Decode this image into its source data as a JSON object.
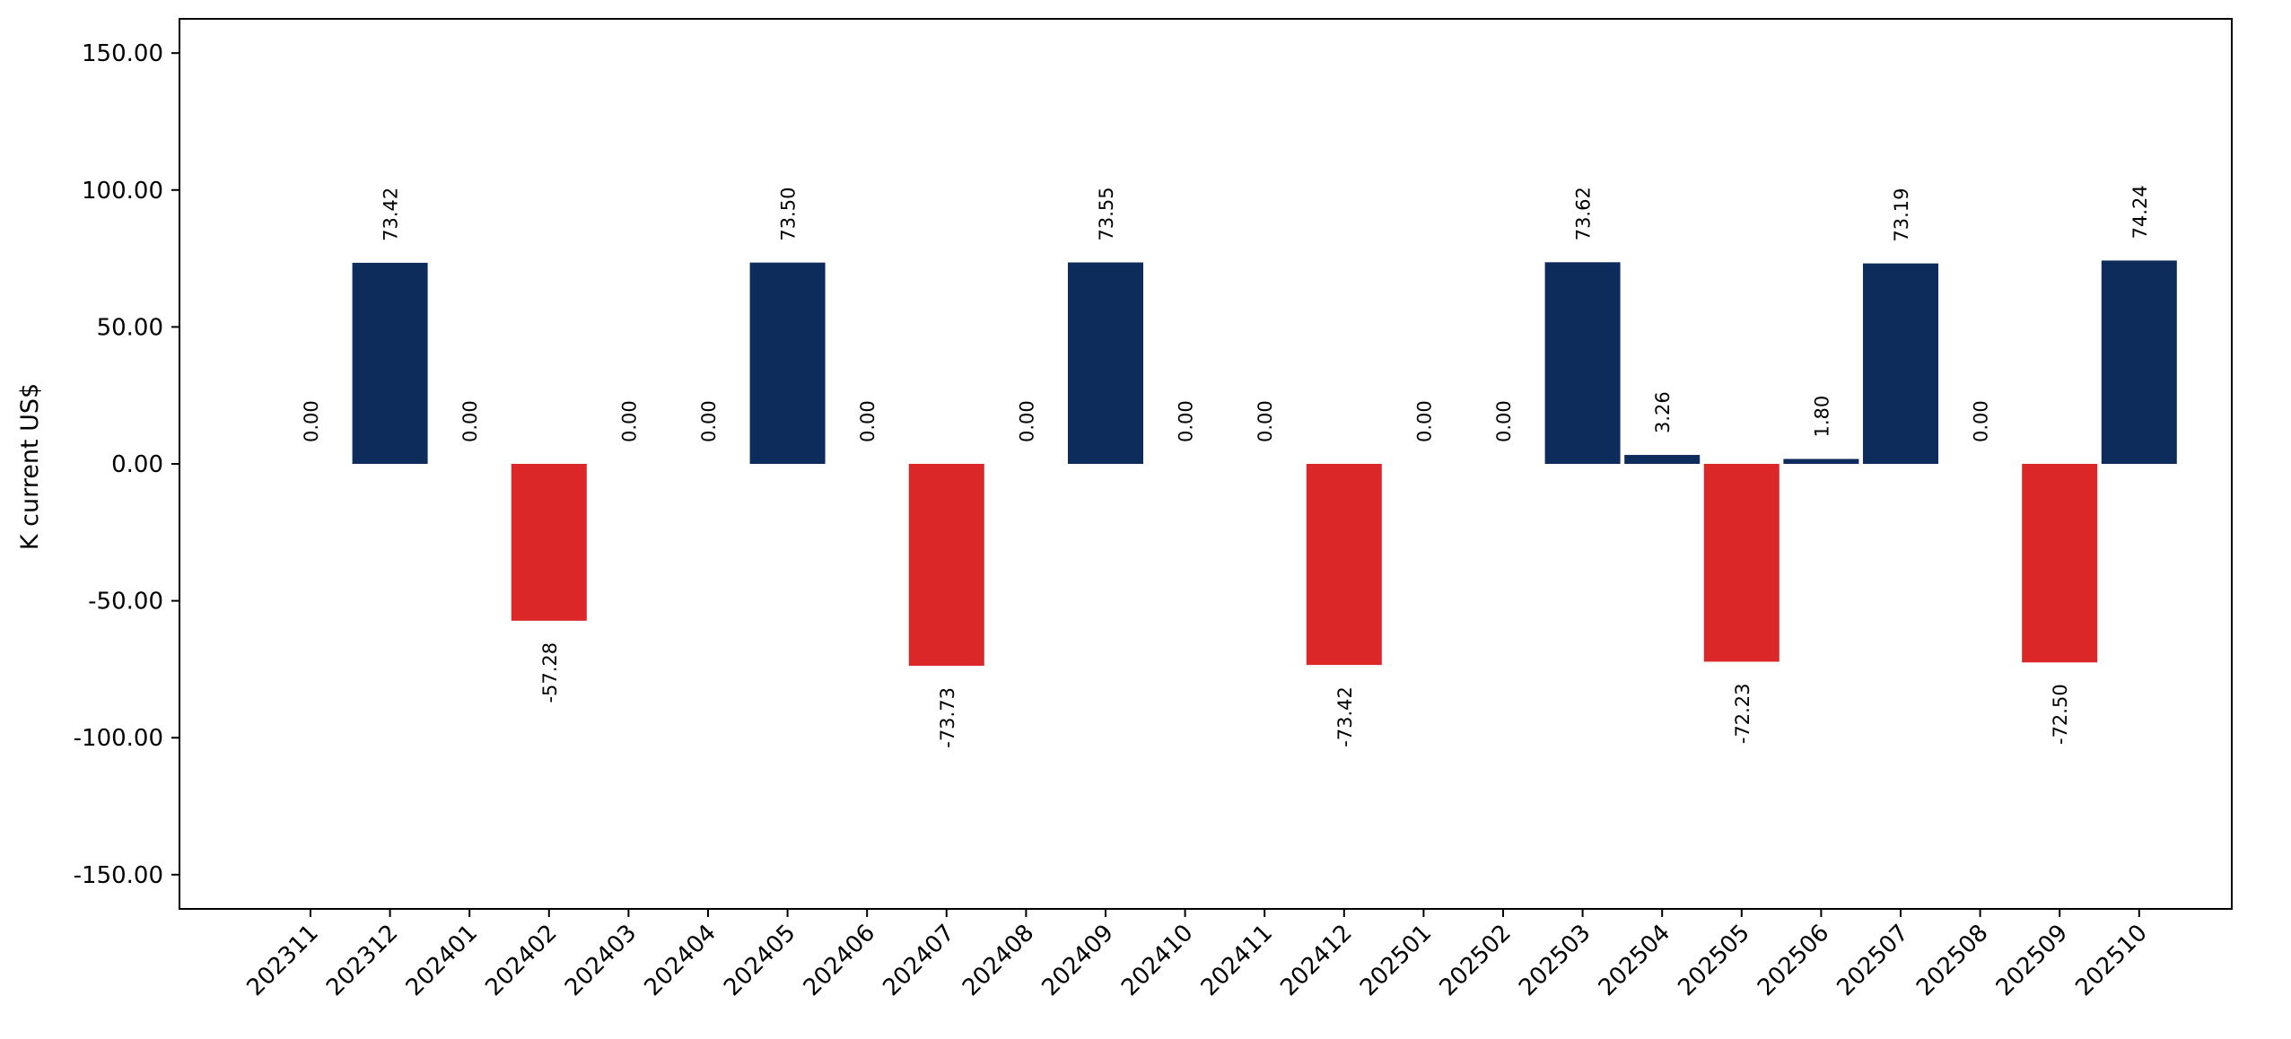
{
  "chart_data": {
    "type": "bar",
    "categories": [
      "202311",
      "202312",
      "202401",
      "202402",
      "202403",
      "202404",
      "202405",
      "202406",
      "202407",
      "202408",
      "202409",
      "202410",
      "202411",
      "202412",
      "202501",
      "202502",
      "202503",
      "202504",
      "202505",
      "202506",
      "202507",
      "202508",
      "202509",
      "202510"
    ],
    "values": [
      0.0,
      73.42,
      0.0,
      -57.28,
      0.0,
      0.0,
      73.5,
      0.0,
      -73.73,
      0.0,
      73.55,
      0.0,
      0.0,
      -73.42,
      0.0,
      0.0,
      73.62,
      3.26,
      -72.23,
      1.8,
      73.19,
      0.0,
      -72.5,
      74.24
    ],
    "data_labels": [
      "0.00",
      "73.42",
      "0.00",
      "-57.28",
      "0.00",
      "0.00",
      "73.50",
      "0.00",
      "-73.73",
      "0.00",
      "73.55",
      "0.00",
      "0.00",
      "-73.42",
      "0.00",
      "0.00",
      "73.62",
      "3.26",
      "-72.23",
      "1.80",
      "73.19",
      "0.00",
      "-72.50",
      "74.24"
    ],
    "ylabel": "K current US$",
    "xlabel": "",
    "title": "",
    "ylim": [
      -162.5,
      162.5
    ],
    "yticks": [
      -150,
      -100,
      -50,
      0,
      50,
      100,
      150
    ],
    "ytick_labels": [
      "-150.00",
      "-100.00",
      "-50.00",
      "0.00",
      "50.00",
      "100.00",
      "150.00"
    ],
    "grid": false,
    "colors": {
      "positive": "#0d2b5b",
      "negative": "#db2727"
    }
  }
}
